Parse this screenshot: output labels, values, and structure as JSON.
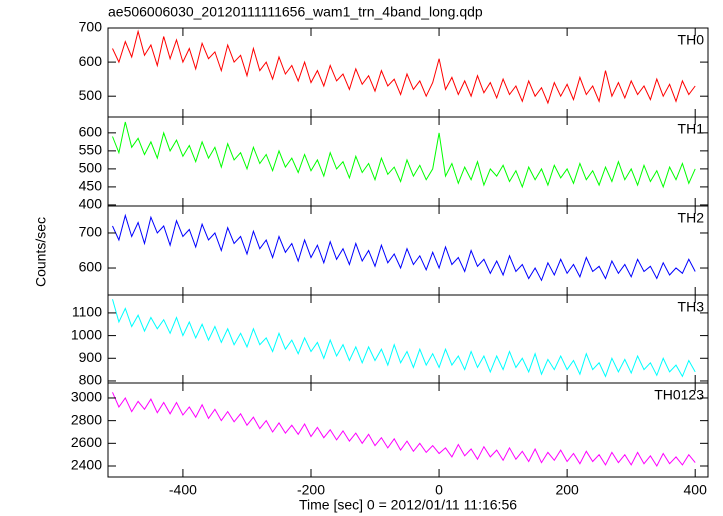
{
  "chart_data": [
    {
      "type": "line",
      "title": "ae506006030_20120111111656_wam1_trn_4band_long.qdp",
      "x": [
        -510,
        -500,
        -490,
        -480,
        -470,
        -460,
        -450,
        -440,
        -430,
        -420,
        -410,
        -400,
        -390,
        -380,
        -370,
        -360,
        -350,
        -340,
        -330,
        -320,
        -310,
        -300,
        -290,
        -280,
        -270,
        -260,
        -250,
        -240,
        -230,
        -220,
        -210,
        -200,
        -190,
        -180,
        -170,
        -160,
        -150,
        -140,
        -130,
        -120,
        -110,
        -100,
        -90,
        -80,
        -70,
        -60,
        -50,
        -40,
        -30,
        -20,
        -10,
        0,
        10,
        20,
        30,
        40,
        50,
        60,
        70,
        80,
        90,
        100,
        110,
        120,
        130,
        140,
        150,
        160,
        170,
        180,
        190,
        200,
        210,
        220,
        230,
        240,
        250,
        260,
        270,
        280,
        290,
        300,
        310,
        320,
        330,
        340,
        350,
        360,
        370,
        380,
        390,
        400
      ],
      "series": [
        {
          "name": "TH0",
          "color": "#ff0000",
          "values": [
            640,
            600,
            660,
            615,
            690,
            620,
            650,
            590,
            675,
            610,
            665,
            600,
            640,
            580,
            655,
            610,
            630,
            575,
            650,
            600,
            620,
            560,
            640,
            575,
            600,
            550,
            615,
            565,
            590,
            545,
            600,
            540,
            575,
            530,
            590,
            545,
            565,
            520,
            580,
            535,
            560,
            515,
            575,
            530,
            550,
            505,
            565,
            520,
            545,
            500,
            540,
            610,
            520,
            555,
            505,
            545,
            500,
            560,
            510,
            540,
            495,
            550,
            505,
            530,
            485,
            545,
            500,
            525,
            480,
            540,
            500,
            535,
            490,
            555,
            505,
            530,
            485,
            575,
            500,
            540,
            495,
            545,
            505,
            530,
            490,
            550,
            500,
            535,
            485,
            545,
            505,
            530
          ]
        }
      ],
      "xlim": [
        -517,
        420
      ],
      "xticks": [
        -400,
        -200,
        0,
        200,
        400
      ],
      "ylim": [
        439,
        700
      ],
      "yticks": [
        500,
        600,
        700
      ]
    },
    {
      "type": "line",
      "x": [
        -510,
        -500,
        -490,
        -480,
        -470,
        -460,
        -450,
        -440,
        -430,
        -420,
        -410,
        -400,
        -390,
        -380,
        -370,
        -360,
        -350,
        -340,
        -330,
        -320,
        -310,
        -300,
        -290,
        -280,
        -270,
        -260,
        -250,
        -240,
        -230,
        -220,
        -210,
        -200,
        -190,
        -180,
        -170,
        -160,
        -150,
        -140,
        -130,
        -120,
        -110,
        -100,
        -90,
        -80,
        -70,
        -60,
        -50,
        -40,
        -30,
        -20,
        -10,
        0,
        10,
        20,
        30,
        40,
        50,
        60,
        70,
        80,
        90,
        100,
        110,
        120,
        130,
        140,
        150,
        160,
        170,
        180,
        190,
        200,
        210,
        220,
        230,
        240,
        250,
        260,
        270,
        280,
        290,
        300,
        310,
        320,
        330,
        340,
        350,
        360,
        370,
        380,
        390,
        400
      ],
      "series": [
        {
          "name": "TH1",
          "color": "#00ff00",
          "values": [
            590,
            545,
            630,
            560,
            585,
            540,
            575,
            530,
            600,
            550,
            580,
            535,
            565,
            520,
            575,
            530,
            560,
            505,
            570,
            525,
            545,
            500,
            560,
            515,
            540,
            495,
            550,
            505,
            530,
            490,
            540,
            495,
            525,
            480,
            545,
            500,
            520,
            475,
            535,
            490,
            515,
            470,
            530,
            485,
            505,
            465,
            525,
            480,
            510,
            470,
            500,
            600,
            480,
            515,
            460,
            505,
            470,
            520,
            455,
            500,
            480,
            510,
            465,
            495,
            450,
            505,
            470,
            500,
            455,
            510,
            475,
            500,
            460,
            515,
            470,
            495,
            455,
            505,
            465,
            520,
            470,
            500,
            455,
            510,
            465,
            495,
            450,
            505,
            470,
            515,
            460,
            500
          ]
        }
      ],
      "xlim": [
        -517,
        420
      ],
      "xticks": [
        -400,
        -200,
        0,
        200,
        400
      ],
      "ylim": [
        397,
        644
      ],
      "yticks": [
        400,
        450,
        500,
        550,
        600
      ]
    },
    {
      "type": "line",
      "ylabel": "Counts/sec",
      "x": [
        -510,
        -500,
        -490,
        -480,
        -470,
        -460,
        -450,
        -440,
        -430,
        -420,
        -410,
        -400,
        -390,
        -380,
        -370,
        -360,
        -350,
        -340,
        -330,
        -320,
        -310,
        -300,
        -290,
        -280,
        -270,
        -260,
        -250,
        -240,
        -230,
        -220,
        -210,
        -200,
        -190,
        -180,
        -170,
        -160,
        -150,
        -140,
        -130,
        -120,
        -110,
        -100,
        -90,
        -80,
        -70,
        -60,
        -50,
        -40,
        -30,
        -20,
        -10,
        0,
        10,
        20,
        30,
        40,
        50,
        60,
        70,
        80,
        90,
        100,
        110,
        120,
        130,
        140,
        150,
        160,
        170,
        180,
        190,
        200,
        210,
        220,
        230,
        240,
        250,
        260,
        270,
        280,
        290,
        300,
        310,
        320,
        330,
        340,
        350,
        360,
        370,
        380,
        390,
        400
      ],
      "series": [
        {
          "name": "TH2",
          "color": "#0000ff",
          "values": [
            720,
            680,
            750,
            690,
            730,
            670,
            745,
            700,
            720,
            665,
            735,
            690,
            710,
            660,
            725,
            680,
            700,
            650,
            715,
            670,
            690,
            640,
            705,
            655,
            680,
            630,
            690,
            645,
            670,
            620,
            680,
            630,
            665,
            615,
            675,
            625,
            655,
            610,
            670,
            620,
            650,
            605,
            665,
            615,
            640,
            600,
            655,
            610,
            635,
            595,
            645,
            600,
            660,
            610,
            630,
            590,
            650,
            605,
            625,
            585,
            620,
            580,
            635,
            590,
            610,
            570,
            600,
            565,
            615,
            580,
            625,
            585,
            610,
            575,
            630,
            590,
            605,
            570,
            620,
            585,
            610,
            575,
            625,
            590,
            605,
            570,
            615,
            580,
            600,
            585,
            625,
            590
          ]
        }
      ],
      "xlim": [
        -517,
        420
      ],
      "xticks": [
        -400,
        -200,
        0,
        200,
        400
      ],
      "ylim": [
        523,
        777
      ],
      "yticks": [
        600,
        700
      ]
    },
    {
      "type": "line",
      "x": [
        -510,
        -500,
        -490,
        -480,
        -470,
        -460,
        -450,
        -440,
        -430,
        -420,
        -410,
        -400,
        -390,
        -380,
        -370,
        -360,
        -350,
        -340,
        -330,
        -320,
        -310,
        -300,
        -290,
        -280,
        -270,
        -260,
        -250,
        -240,
        -230,
        -220,
        -210,
        -200,
        -190,
        -180,
        -170,
        -160,
        -150,
        -140,
        -130,
        -120,
        -110,
        -100,
        -90,
        -80,
        -70,
        -60,
        -50,
        -40,
        -30,
        -20,
        -10,
        0,
        10,
        20,
        30,
        40,
        50,
        60,
        70,
        80,
        90,
        100,
        110,
        120,
        130,
        140,
        150,
        160,
        170,
        180,
        190,
        200,
        210,
        220,
        230,
        240,
        250,
        260,
        270,
        280,
        290,
        300,
        310,
        320,
        330,
        340,
        350,
        360,
        370,
        380,
        390,
        400
      ],
      "series": [
        {
          "name": "TH3",
          "color": "#00ffff",
          "values": [
            1160,
            1060,
            1120,
            1040,
            1090,
            1020,
            1080,
            1030,
            1070,
            1010,
            1080,
            1000,
            1060,
            990,
            1050,
            980,
            1040,
            970,
            1030,
            960,
            1010,
            950,
            1030,
            960,
            990,
            930,
            1010,
            940,
            980,
            920,
            990,
            930,
            970,
            900,
            980,
            910,
            960,
            890,
            950,
            880,
            950,
            890,
            940,
            870,
            960,
            880,
            930,
            860,
            940,
            870,
            920,
            860,
            940,
            870,
            910,
            850,
            930,
            860,
            910,
            840,
            910,
            850,
            930,
            860,
            900,
            840,
            920,
            830,
            895,
            850,
            910,
            850,
            890,
            830,
            920,
            850,
            880,
            820,
            900,
            840,
            895,
            835,
            910,
            850,
            880,
            825,
            900,
            840,
            870,
            820,
            890,
            840
          ]
        }
      ],
      "xlim": [
        -517,
        420
      ],
      "xticks": [
        -400,
        -200,
        0,
        200,
        400
      ],
      "ylim": [
        791,
        1179
      ],
      "yticks": [
        800,
        900,
        1000,
        1100
      ]
    },
    {
      "type": "line",
      "xlabel": "Time [sec] 0 = 2012/01/11 11:16:56",
      "x": [
        -510,
        -500,
        -490,
        -480,
        -470,
        -460,
        -450,
        -440,
        -430,
        -420,
        -410,
        -400,
        -390,
        -380,
        -370,
        -360,
        -350,
        -340,
        -330,
        -320,
        -310,
        -300,
        -290,
        -280,
        -270,
        -260,
        -250,
        -240,
        -230,
        -220,
        -210,
        -200,
        -190,
        -180,
        -170,
        -160,
        -150,
        -140,
        -130,
        -120,
        -110,
        -100,
        -90,
        -80,
        -70,
        -60,
        -50,
        -40,
        -30,
        -20,
        -10,
        0,
        10,
        20,
        30,
        40,
        50,
        60,
        70,
        80,
        90,
        100,
        110,
        120,
        130,
        140,
        150,
        160,
        170,
        180,
        190,
        200,
        210,
        220,
        230,
        240,
        250,
        260,
        270,
        280,
        290,
        300,
        310,
        320,
        330,
        340,
        350,
        360,
        370,
        380,
        390,
        400
      ],
      "series": [
        {
          "name": "TH0123",
          "color": "#ff00ff",
          "values": [
            3050,
            2920,
            3000,
            2880,
            2970,
            2900,
            2990,
            2870,
            2960,
            2860,
            2960,
            2850,
            2920,
            2830,
            2940,
            2820,
            2900,
            2800,
            2880,
            2790,
            2860,
            2760,
            2830,
            2730,
            2800,
            2700,
            2780,
            2690,
            2760,
            2680,
            2770,
            2660,
            2740,
            2650,
            2720,
            2630,
            2710,
            2620,
            2690,
            2600,
            2680,
            2580,
            2650,
            2560,
            2640,
            2540,
            2620,
            2530,
            2600,
            2520,
            2580,
            2510,
            2560,
            2480,
            2590,
            2490,
            2550,
            2460,
            2570,
            2480,
            2540,
            2450,
            2560,
            2460,
            2530,
            2440,
            2550,
            2430,
            2520,
            2450,
            2540,
            2440,
            2510,
            2420,
            2530,
            2440,
            2500,
            2410,
            2520,
            2430,
            2500,
            2410,
            2520,
            2420,
            2490,
            2400,
            2510,
            2420,
            2480,
            2410,
            2500,
            2430
          ]
        }
      ],
      "xlim": [
        -517,
        420
      ],
      "xticks": [
        -400,
        -200,
        0,
        200,
        400
      ],
      "ylim": [
        2303,
        3132
      ],
      "yticks": [
        2400,
        2600,
        2800,
        3000
      ]
    }
  ]
}
